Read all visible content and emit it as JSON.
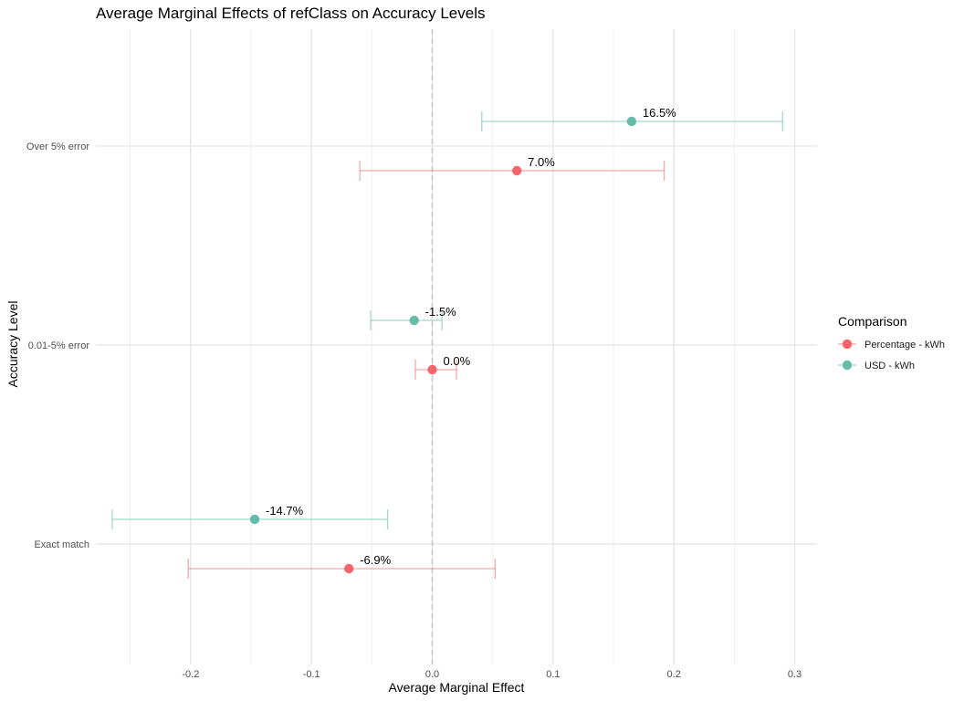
{
  "chart_data": {
    "type": "scatter",
    "subtype": "point-with-errorbars",
    "title": "Average Marginal Effects of refClass on Accuracy Levels",
    "xlabel": "Average Marginal Effect",
    "ylabel": "Accuracy Level",
    "xlim": [
      -0.2785,
      0.3185
    ],
    "x_ticks": [
      -0.2,
      -0.1,
      0.0,
      0.1,
      0.2,
      0.3
    ],
    "x_tick_labels": [
      "-0.2",
      "-0.1",
      "0.0",
      "0.1",
      "0.2",
      "0.3"
    ],
    "categories": [
      "Exact match",
      "0.01-5% error",
      "Over 5% error"
    ],
    "reference_line": 0,
    "grid": true,
    "legend": {
      "title": "Comparison",
      "position": "right"
    },
    "series": [
      {
        "name": "Percentage - kWh",
        "color": "#F35E63",
        "points": [
          {
            "category": "Exact match",
            "estimate": -0.069,
            "lower": -0.202,
            "upper": 0.052,
            "label": "-6.9%"
          },
          {
            "category": "0.01-5% error",
            "estimate": 0.0,
            "lower": -0.014,
            "upper": 0.02,
            "label": "0.0%"
          },
          {
            "category": "Over 5% error",
            "estimate": 0.07,
            "lower": -0.06,
            "upper": 0.192,
            "label": "7.0%"
          }
        ]
      },
      {
        "name": "USD - kWh",
        "color": "#5DB8A3",
        "points": [
          {
            "category": "Exact match",
            "estimate": -0.147,
            "lower": -0.265,
            "upper": -0.037,
            "label": "-14.7%"
          },
          {
            "category": "0.01-5% error",
            "estimate": -0.015,
            "lower": -0.051,
            "upper": 0.008,
            "label": "-1.5%"
          },
          {
            "category": "Over 5% error",
            "estimate": 0.165,
            "lower": 0.041,
            "upper": 0.29,
            "label": "16.5%"
          }
        ]
      }
    ]
  }
}
